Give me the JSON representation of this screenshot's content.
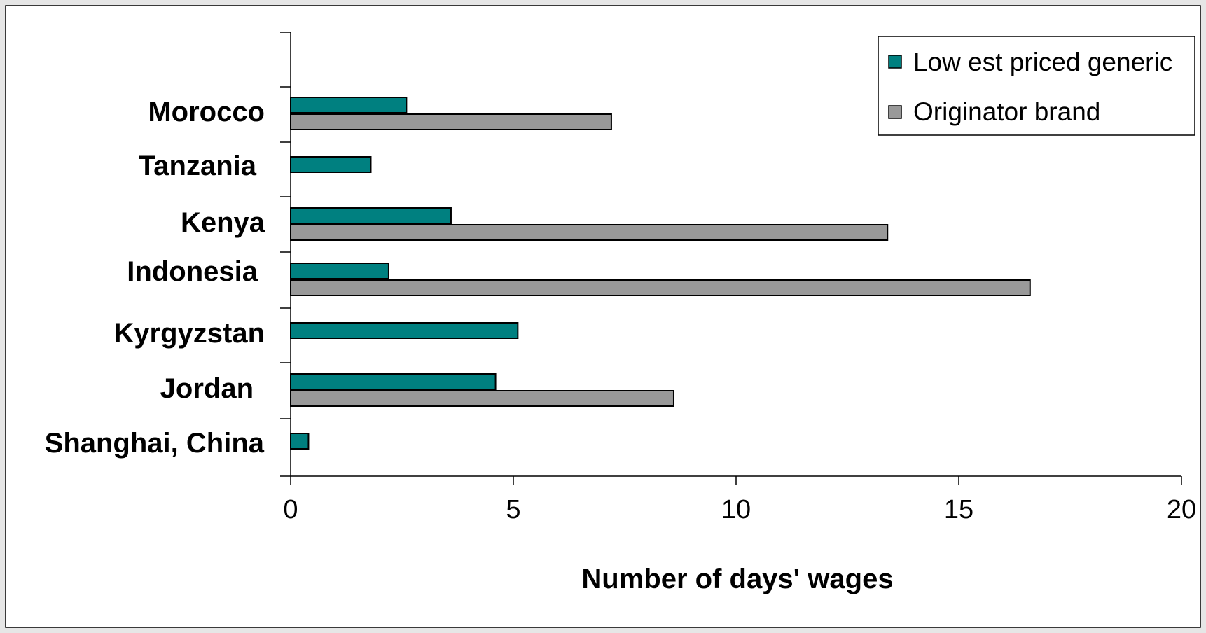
{
  "chart_data": {
    "type": "bar",
    "orientation": "horizontal",
    "categories": [
      "Morocco",
      "Tanzania",
      "Kenya",
      "Indonesia",
      "Kyrgyzstan",
      "Jordan",
      "Shanghai, China"
    ],
    "series": [
      {
        "name": "Low est priced generic",
        "color": "#008080",
        "values": [
          2.6,
          1.8,
          3.6,
          2.2,
          5.1,
          4.6,
          0.4
        ]
      },
      {
        "name": "Originator brand",
        "color": "#999999",
        "values": [
          7.2,
          null,
          13.4,
          16.6,
          null,
          8.6,
          null
        ]
      }
    ],
    "xlabel": "Number of days' wages",
    "ylabel": "",
    "xlim": [
      0,
      20
    ],
    "xticks": [
      "0",
      "5",
      "10",
      "15",
      "20"
    ],
    "grid": false,
    "legend": "top-right"
  }
}
